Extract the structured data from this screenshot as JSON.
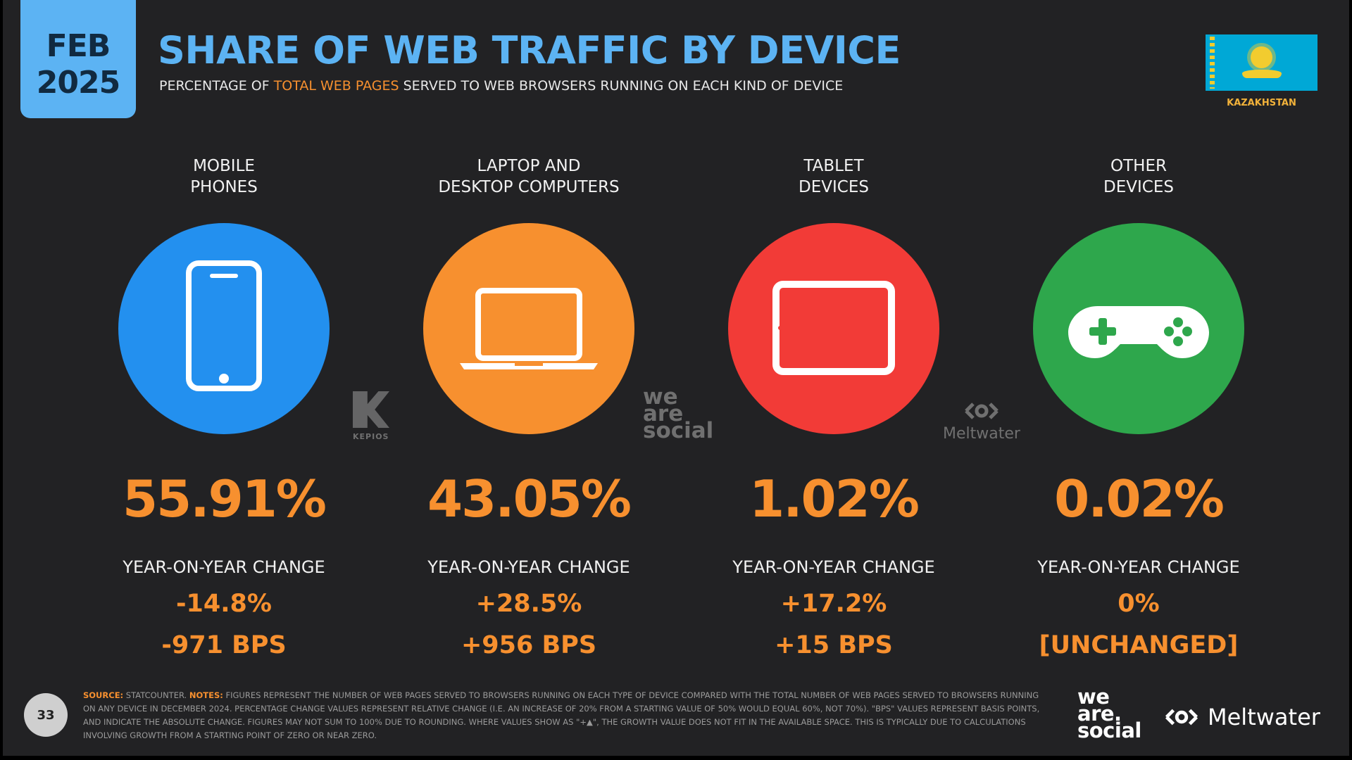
{
  "header": {
    "date_month": "FEB",
    "date_year": "2025",
    "title": "SHARE OF WEB TRAFFIC BY DEVICE",
    "subtitle_pre": "PERCENTAGE OF ",
    "subtitle_highlight": "TOTAL WEB PAGES",
    "subtitle_post": " SERVED TO WEB BROWSERS RUNNING ON EACH KIND OF DEVICE",
    "country": "KAZAKHSTAN",
    "flag_icon": "kazakhstan-flag-icon"
  },
  "colors": {
    "accent_blue": "#5cb3f3",
    "value_orange": "#f7902f",
    "mobile": "#2390ef",
    "laptop": "#f7902f",
    "tablet": "#f23b37",
    "other": "#2ea74c"
  },
  "devices": [
    {
      "label_line1": "MOBILE",
      "label_line2": "PHONES",
      "icon": "mobile-phone-icon",
      "value": "55.91%",
      "share": 55.91,
      "yoy_label": "YEAR-ON-YEAR CHANGE",
      "yoy_pct": "-14.8%",
      "yoy_bps": "-971 BPS"
    },
    {
      "label_line1": "LAPTOP AND",
      "label_line2": "DESKTOP COMPUTERS",
      "icon": "laptop-icon",
      "value": "43.05%",
      "share": 43.05,
      "yoy_label": "YEAR-ON-YEAR CHANGE",
      "yoy_pct": "+28.5%",
      "yoy_bps": "+956 BPS"
    },
    {
      "label_line1": "TABLET",
      "label_line2": "DEVICES",
      "icon": "tablet-icon",
      "value": "1.02%",
      "share": 1.02,
      "yoy_label": "YEAR-ON-YEAR CHANGE",
      "yoy_pct": "+17.2%",
      "yoy_bps": "+15 BPS"
    },
    {
      "label_line1": "OTHER",
      "label_line2": "DEVICES",
      "icon": "game-controller-icon",
      "value": "0.02%",
      "share": 0.02,
      "yoy_label": "YEAR-ON-YEAR CHANGE",
      "yoy_pct": "0%",
      "yoy_bps": "[UNCHANGED]"
    }
  ],
  "watermarks": {
    "kepios": "KEPIOS",
    "was_1": "we",
    "was_2": "are",
    "was_3": "social",
    "meltwater": "Meltwater"
  },
  "footer": {
    "page_number": "33",
    "source_label": "SOURCE:",
    "source_text": " STATCOUNTER. ",
    "notes_label": "NOTES:",
    "notes_text": " FIGURES REPRESENT THE NUMBER OF WEB PAGES SERVED TO BROWSERS RUNNING ON EACH TYPE OF DEVICE COMPARED WITH THE TOTAL NUMBER OF WEB PAGES SERVED TO BROWSERS RUNNING ON ANY DEVICE IN DECEMBER 2024. PERCENTAGE CHANGE VALUES REPRESENT RELATIVE CHANGE (I.E. AN INCREASE OF 20% FROM A STARTING VALUE OF 50% WOULD EQUAL 60%, NOT 70%). \"BPS\" VALUES REPRESENT BASIS POINTS, AND INDICATE THE ABSOLUTE CHANGE. FIGURES MAY NOT SUM TO 100% DUE TO ROUNDING. WHERE VALUES SHOW AS \"+▲\", THE GROWTH VALUE DOES NOT FIT IN THE AVAILABLE SPACE. THIS IS TYPICALLY DUE TO CALCULATIONS INVOLVING GROWTH FROM A STARTING POINT OF ZERO OR NEAR ZERO.",
    "logo_was_1": "we",
    "logo_was_2": "are.",
    "logo_was_3": "social",
    "logo_meltwater": "Meltwater"
  }
}
